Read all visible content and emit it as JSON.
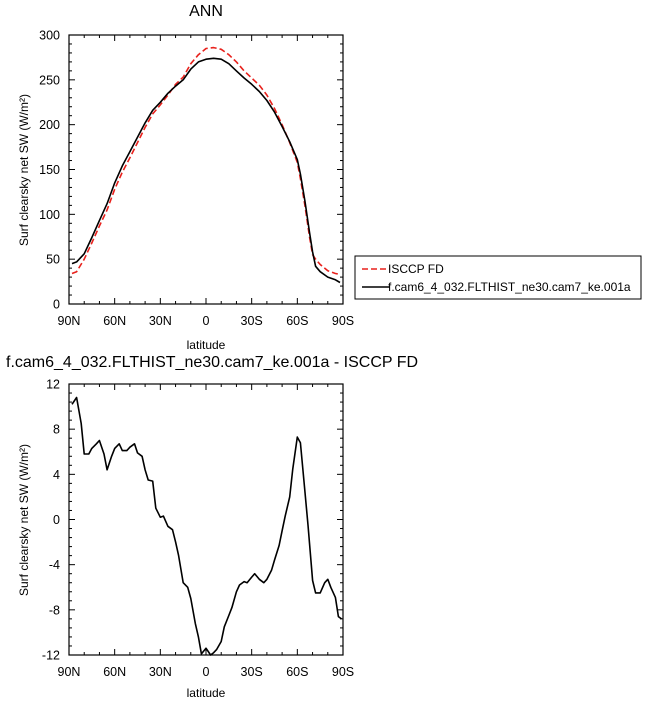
{
  "chart_data": [
    {
      "type": "line",
      "title": "ANN",
      "xlabel": "latitude",
      "ylabel": "Surf clearsky net SW (W/m²)",
      "xlim": [
        -90,
        90
      ],
      "ylim": [
        0,
        300
      ],
      "x_ticks": [
        -90,
        -60,
        -30,
        0,
        30,
        60,
        90
      ],
      "x_tick_labels": [
        "90N",
        "60N",
        "30N",
        "0",
        "30S",
        "60S",
        "90S"
      ],
      "y_ticks": [
        0,
        50,
        100,
        150,
        200,
        250,
        300
      ],
      "y_tick_labels": [
        "0",
        "50",
        "100",
        "150",
        "200",
        "250",
        "300"
      ],
      "legend_position": "outside-right",
      "series": [
        {
          "name": "ISCCP FD",
          "color": "#e8211c",
          "dash": "dashed",
          "x": [
            -88,
            -85,
            -80,
            -75,
            -70,
            -65,
            -60,
            -55,
            -50,
            -45,
            -40,
            -35,
            -30,
            -25,
            -20,
            -15,
            -10,
            -5,
            0,
            5,
            10,
            15,
            20,
            25,
            30,
            35,
            40,
            45,
            50,
            55,
            60,
            62,
            65,
            68,
            70,
            72,
            75,
            80,
            85,
            88
          ],
          "y": [
            34,
            36,
            50,
            68,
            87,
            105,
            128,
            147,
            163,
            180,
            197,
            212,
            222,
            233,
            245,
            253,
            268,
            278,
            285,
            286,
            284,
            278,
            270,
            260,
            252,
            244,
            233,
            218,
            200,
            180,
            158,
            140,
            110,
            75,
            55,
            50,
            44,
            37,
            34,
            33
          ]
        },
        {
          "name": "f.cam6_4_032.FLTHIST_ne30.cam7_ke.001a",
          "color": "#000000",
          "dash": "solid",
          "x": [
            -88,
            -85,
            -80,
            -75,
            -70,
            -65,
            -60,
            -55,
            -50,
            -45,
            -40,
            -35,
            -30,
            -25,
            -20,
            -15,
            -10,
            -5,
            0,
            5,
            10,
            15,
            20,
            25,
            30,
            35,
            40,
            45,
            50,
            55,
            60,
            62,
            65,
            68,
            70,
            72,
            75,
            80,
            85,
            88
          ],
          "y": [
            45,
            47,
            56,
            74,
            93,
            112,
            135,
            154,
            170,
            186,
            202,
            216,
            225,
            235,
            243,
            250,
            262,
            270,
            273,
            274,
            273,
            268,
            260,
            252,
            245,
            237,
            227,
            214,
            198,
            181,
            161,
            145,
            115,
            80,
            58,
            42,
            36,
            30,
            27,
            24
          ]
        }
      ]
    },
    {
      "type": "line",
      "title": "f.cam6_4_032.FLTHIST_ne30.cam7_ke.001a - ISCCP FD",
      "xlabel": "latitude",
      "ylabel": "Surf clearsky net SW (W/m²)",
      "xlim": [
        -90,
        90
      ],
      "ylim": [
        -12,
        12
      ],
      "x_ticks": [
        -90,
        -60,
        -30,
        0,
        30,
        60,
        90
      ],
      "x_tick_labels": [
        "90N",
        "60N",
        "30N",
        "0",
        "30S",
        "60S",
        "90S"
      ],
      "y_ticks": [
        -12,
        -8,
        -4,
        0,
        4,
        8,
        12
      ],
      "y_tick_labels": [
        "-12",
        "-8",
        "-4",
        "0",
        "4",
        "8",
        "12"
      ],
      "series": [
        {
          "color": "#000000",
          "dash": "solid",
          "x": [
            -88,
            -85,
            -82,
            -80,
            -77,
            -75,
            -72,
            -70,
            -67,
            -65,
            -62,
            -60,
            -57,
            -55,
            -52,
            -50,
            -47,
            -45,
            -42,
            -40,
            -38,
            -35,
            -33,
            -30,
            -28,
            -25,
            -22,
            -20,
            -18,
            -15,
            -12,
            -10,
            -7,
            -5,
            -3,
            0,
            3,
            5,
            7,
            10,
            12,
            15,
            17,
            20,
            22,
            25,
            27,
            30,
            32,
            35,
            38,
            40,
            43,
            45,
            48,
            50,
            52,
            55,
            57,
            60,
            62,
            65,
            67,
            70,
            72,
            75,
            78,
            80,
            82,
            85,
            87,
            89
          ],
          "y": [
            10.2,
            10.8,
            8.5,
            5.8,
            5.8,
            6.3,
            6.7,
            7.0,
            5.8,
            4.4,
            5.6,
            6.3,
            6.7,
            6.1,
            6.1,
            6.4,
            6.7,
            5.9,
            5.6,
            4.4,
            3.5,
            3.4,
            1.0,
            0.2,
            0.3,
            -0.6,
            -0.9,
            -2.0,
            -3.2,
            -5.6,
            -6.0,
            -7.0,
            -9.2,
            -10.4,
            -11.9,
            -11.4,
            -12.0,
            -11.8,
            -11.5,
            -10.8,
            -9.5,
            -8.5,
            -7.8,
            -6.4,
            -5.8,
            -5.5,
            -5.6,
            -5.1,
            -4.8,
            -5.3,
            -5.6,
            -5.3,
            -4.5,
            -3.6,
            -2.3,
            -1.0,
            0.3,
            2.0,
            4.5,
            7.3,
            6.8,
            2.5,
            -0.5,
            -5.4,
            -6.5,
            -6.5,
            -5.6,
            -5.3,
            -6.0,
            -6.9,
            -8.6,
            -8.8
          ]
        }
      ]
    }
  ]
}
